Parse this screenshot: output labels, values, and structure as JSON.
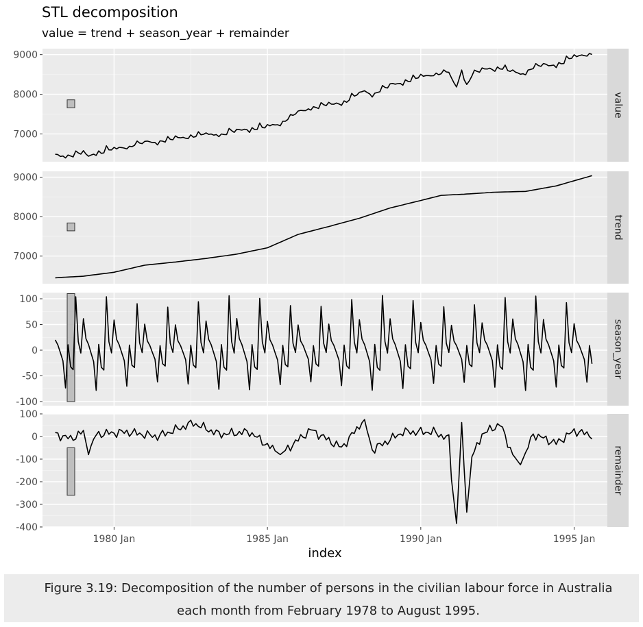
{
  "chart_data": {
    "type": "line",
    "title": "STL decomposition",
    "subtitle": "value = trend + season_year + remainder",
    "xlabel": "index",
    "x_ticks": [
      "1980 Jan",
      "1985 Jan",
      "1990 Jan",
      "1995 Jan"
    ],
    "x_range": [
      "1977-09",
      "1996-02"
    ],
    "panels": [
      {
        "name": "value",
        "ylim": [
          6300,
          9150
        ],
        "y_ticks": [
          7000,
          8000,
          9000
        ],
        "scale_bar": [
          7660,
          7860
        ]
      },
      {
        "name": "trend",
        "ylim": [
          6300,
          9150
        ],
        "y_ticks": [
          7000,
          8000,
          9000
        ],
        "scale_bar": [
          7640,
          7840
        ]
      },
      {
        "name": "season_year",
        "ylim": [
          -108,
          112
        ],
        "y_ticks": [
          -100,
          -50,
          0,
          50,
          100
        ],
        "scale_bar": [
          -100,
          110
        ]
      },
      {
        "name": "remainder",
        "ylim": [
          -400,
          100
        ],
        "y_ticks": [
          -400,
          -300,
          -200,
          -100,
          0,
          100
        ],
        "scale_bar": [
          -260,
          -50
        ]
      }
    ],
    "series": {
      "trend": [
        [
          "1978-02",
          6450
        ],
        [
          "1979-01",
          6490
        ],
        [
          "1980-01",
          6590
        ],
        [
          "1981-01",
          6770
        ],
        [
          "1982-01",
          6850
        ],
        [
          "1983-01",
          6940
        ],
        [
          "1984-01",
          7050
        ],
        [
          "1985-01",
          7210
        ],
        [
          "1986-01",
          7550
        ],
        [
          "1987-01",
          7750
        ],
        [
          "1988-01",
          7960
        ],
        [
          "1989-01",
          8220
        ],
        [
          "1990-01",
          8410
        ],
        [
          "1990-09",
          8540
        ],
        [
          "1991-06",
          8570
        ],
        [
          "1992-06",
          8620
        ],
        [
          "1993-06",
          8640
        ],
        [
          "1994-06",
          8780
        ],
        [
          "1995-08",
          9040
        ]
      ],
      "season_year_pattern": [
        55,
        20,
        10,
        -5,
        -20,
        -70,
        10,
        -30,
        -35,
        95,
        15,
        -5
      ],
      "remainder": [
        [
          "1978-02",
          10
        ],
        [
          "1978-08",
          -10
        ],
        [
          "1979-01",
          20
        ],
        [
          "1979-03",
          -80
        ],
        [
          "1979-06",
          10
        ],
        [
          "1980-06",
          20
        ],
        [
          "1981-06",
          0
        ],
        [
          "1982-08",
          60
        ],
        [
          "1983-06",
          10
        ],
        [
          "1984-06",
          20
        ],
        [
          "1985-06",
          -80
        ],
        [
          "1986-06",
          30
        ],
        [
          "1987-06",
          -50
        ],
        [
          "1988-03",
          75
        ],
        [
          "1988-06",
          -60
        ],
        [
          "1989-06",
          20
        ],
        [
          "1990-06",
          20
        ],
        [
          "1990-12",
          -10
        ],
        [
          "1991-01",
          -190
        ],
        [
          "1991-03",
          -385
        ],
        [
          "1991-05",
          40
        ],
        [
          "1991-07",
          -335
        ],
        [
          "1991-09",
          -90
        ],
        [
          "1992-01",
          10
        ],
        [
          "1992-08",
          55
        ],
        [
          "1993-01",
          -80
        ],
        [
          "1993-04",
          -125
        ],
        [
          "1993-09",
          10
        ],
        [
          "1994-06",
          -30
        ],
        [
          "1995-01",
          25
        ],
        [
          "1995-08",
          5
        ]
      ]
    }
  },
  "caption": "Figure 3.19: Decomposition of the number of persons in the civilian labour force in Australia each month from February 1978 to August 1995."
}
